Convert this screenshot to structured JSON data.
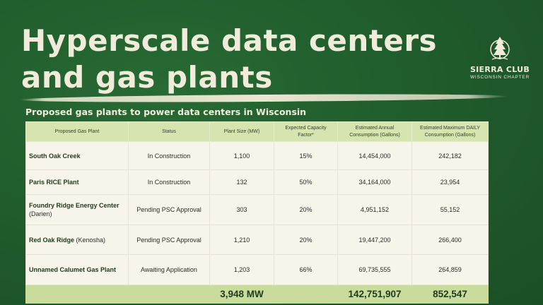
{
  "title": {
    "line1": "Hyperscale data centers",
    "line2": "and gas plants"
  },
  "logo": {
    "org": "SIERRA CLUB",
    "chapter": "WISCONSIN CHAPTER"
  },
  "table_title": "Proposed gas plants to power data centers in Wisconsin",
  "columns": [
    "Proposed Gas Plant",
    "Status",
    "Plant Size (MW)",
    "Expected Capacity Factor*",
    "Estimated Annual Consumption (Gallons)",
    "Estimated Maximum DAILY Consumption (Gallons)"
  ],
  "rows": [
    {
      "name": "South Oak Creek",
      "location": "",
      "status": "In Construction",
      "size": "1,100",
      "capacity": "15%",
      "annual": "14,454,000",
      "daily": "242,182"
    },
    {
      "name": "Paris RICE Plant",
      "location": "",
      "status": "In Construction",
      "size": "132",
      "capacity": "50%",
      "annual": "34,164,000",
      "daily": "23,954"
    },
    {
      "name": "Foundry Ridge Energy Center",
      "location": "(Darien)",
      "status": "Pending PSC Approval",
      "size": "303",
      "capacity": "20%",
      "annual": "4,951,152",
      "daily": "55,152"
    },
    {
      "name": "Red Oak Ridge",
      "location": "(Kenosha)",
      "status": "Pending PSC Approval",
      "size": "1,210",
      "capacity": "20%",
      "annual": "19,447,200",
      "daily": "266,400"
    },
    {
      "name": "Unnamed Calumet Gas Plant",
      "location": "",
      "status": "Awaiting Application",
      "size": "1,203",
      "capacity": "66%",
      "annual": "69,735,555",
      "daily": "264,859"
    }
  ],
  "totals": {
    "size": "3,948 MW",
    "annual": "142,751,907",
    "daily": "852,547"
  }
}
